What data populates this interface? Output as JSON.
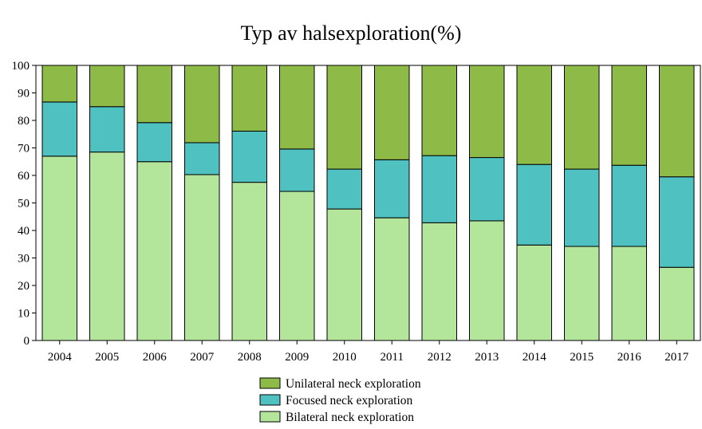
{
  "chart_data": {
    "type": "bar",
    "stacked": true,
    "title": "Typ av halsexploration(%)",
    "xlabel": "",
    "ylabel": "",
    "ylim": [
      0,
      100
    ],
    "yticks": [
      0,
      10,
      20,
      30,
      40,
      50,
      60,
      70,
      80,
      90,
      100
    ],
    "grid": false,
    "legend_position": "bottom",
    "categories": [
      "2004",
      "2005",
      "2006",
      "2007",
      "2008",
      "2009",
      "2010",
      "2011",
      "2012",
      "2013",
      "2014",
      "2015",
      "2016",
      "2017"
    ],
    "series": [
      {
        "name": "Bilateral neck exploration",
        "color": "#b3e59a",
        "values": [
          67.0,
          68.5,
          65.0,
          60.3,
          57.5,
          54.2,
          47.8,
          44.6,
          42.8,
          43.5,
          34.7,
          34.2,
          34.2,
          26.6
        ]
      },
      {
        "name": "Focused neck exploration",
        "color": "#4fc1c0",
        "values": [
          19.7,
          16.5,
          14.2,
          11.6,
          18.6,
          15.4,
          14.5,
          21.1,
          24.4,
          23.0,
          29.3,
          28.1,
          29.5,
          32.9
        ]
      },
      {
        "name": "Unilateral neck exploration",
        "color": "#8ebb47",
        "values": [
          13.3,
          15.0,
          20.8,
          28.1,
          23.9,
          30.4,
          37.7,
          34.3,
          32.8,
          33.5,
          36.0,
          37.7,
          36.3,
          40.5
        ]
      }
    ],
    "legend_order": [
      "Unilateral neck exploration",
      "Focused neck exploration",
      "Bilateral neck exploration"
    ]
  }
}
